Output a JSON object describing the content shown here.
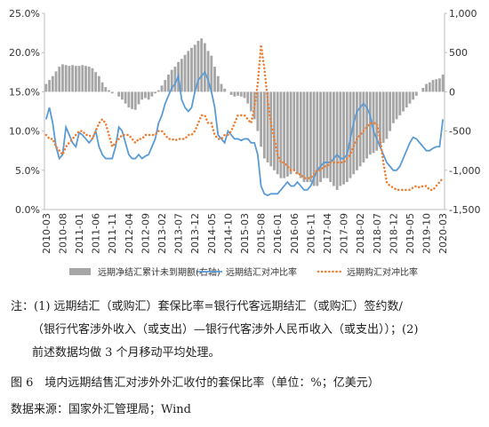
{
  "chart_data": {
    "type": "bar-line",
    "categories": [
      "2010-03",
      null,
      null,
      null,
      null,
      "2010-08",
      null,
      null,
      null,
      null,
      "2011-01",
      null,
      null,
      null,
      null,
      "2011-06",
      null,
      null,
      null,
      null,
      "2011-11",
      null,
      null,
      null,
      null,
      "2012-04",
      null,
      null,
      null,
      null,
      "2012-09",
      null,
      null,
      null,
      null,
      "2013-02",
      null,
      null,
      null,
      null,
      "2013-07",
      null,
      null,
      null,
      null,
      "2013-12",
      null,
      null,
      null,
      null,
      "2014-05",
      null,
      null,
      null,
      null,
      "2014-10",
      null,
      null,
      null,
      null,
      "2015-03",
      null,
      null,
      null,
      null,
      "2015-08",
      null,
      null,
      null,
      null,
      "2016-01",
      null,
      null,
      null,
      null,
      "2016-06",
      null,
      null,
      null,
      null,
      "2016-11",
      null,
      null,
      null,
      null,
      "2017-04",
      null,
      null,
      null,
      null,
      "2017-09",
      null,
      null,
      null,
      null,
      "2018-02",
      null,
      null,
      null,
      null,
      "2018-07",
      null,
      null,
      null,
      null,
      "2018-12",
      null,
      null,
      null,
      null,
      "2019-05",
      null,
      null,
      null,
      null,
      "2019-10",
      null,
      null,
      null,
      null,
      "2020-03"
    ],
    "series": [
      {
        "name": "远期净结汇累计未到期额(右轴)",
        "kind": "bar",
        "axis": "y2",
        "color": "#a6a6a6",
        "values": [
          100,
          150,
          200,
          260,
          320,
          350,
          340,
          330,
          340,
          330,
          330,
          340,
          330,
          320,
          300,
          250,
          200,
          120,
          60,
          20,
          -20,
          0,
          -60,
          -100,
          -150,
          -200,
          -220,
          -230,
          -160,
          -100,
          -80,
          -100,
          -60,
          -20,
          20,
          80,
          150,
          220,
          280,
          320,
          380,
          420,
          470,
          520,
          560,
          600,
          650,
          680,
          620,
          520,
          460,
          320,
          200,
          100,
          40,
          0,
          -40,
          -60,
          -50,
          -60,
          -80,
          -150,
          -250,
          -350,
          -500,
          -700,
          -850,
          -900,
          -950,
          -1000,
          -1050,
          -1100,
          -1100,
          -1080,
          -1050,
          -1000,
          -1050,
          -1100,
          -1150,
          -1150,
          -1150,
          -1200,
          -1200,
          -1150,
          -1100,
          -1100,
          -1150,
          -1200,
          -1250,
          -1200,
          -1180,
          -1150,
          -1100,
          -1050,
          -1000,
          -950,
          -900,
          -850,
          -800,
          -780,
          -750,
          -700,
          -650,
          -600,
          -500,
          -400,
          -350,
          -300,
          -250,
          -200,
          -150,
          -100,
          -50,
          0,
          50,
          100,
          120,
          150,
          160,
          170,
          220
        ]
      },
      {
        "name": "远期结汇对冲比率",
        "kind": "line",
        "axis": "y",
        "color": "#5b9bd5",
        "values": [
          11.5,
          13,
          11,
          8,
          6.5,
          7,
          10.5,
          9.5,
          8.5,
          8,
          9.8,
          9.5,
          9,
          8.5,
          9,
          10,
          8,
          7,
          6.5,
          6.5,
          6.5,
          8,
          10.5,
          10,
          8.5,
          7,
          6.5,
          6.5,
          7,
          6.5,
          6.8,
          7,
          8,
          9,
          11,
          12,
          13.5,
          14.5,
          15.5,
          16,
          17,
          14,
          13,
          12.5,
          13,
          15,
          16.5,
          17,
          17.5,
          16.5,
          15,
          13,
          9.5,
          9,
          8.5,
          10,
          9.5,
          9,
          9,
          8.8,
          9,
          9,
          8.5,
          8.5,
          7,
          3,
          2,
          1.8,
          2,
          2,
          2,
          2.5,
          3,
          3.5,
          3,
          3,
          3.5,
          3,
          2.5,
          2.5,
          3,
          4,
          5,
          5.5,
          6,
          6,
          6,
          6.5,
          7,
          6.5,
          6.5,
          7,
          9,
          11,
          12.5,
          13,
          13.5,
          13,
          12,
          10,
          9,
          8,
          7,
          6,
          5.5,
          5,
          5,
          5.5,
          6.5,
          7.5,
          8.5,
          9.2,
          9,
          8.5,
          8,
          7.5,
          7.5,
          7.8,
          8,
          8,
          11.5
        ]
      },
      {
        "name": "远期购汇对冲比率",
        "kind": "dotted",
        "axis": "y",
        "color": "#ed7d31",
        "values": [
          9.5,
          9,
          9,
          8,
          7.5,
          7,
          8,
          8.5,
          9,
          9.5,
          10,
          10,
          9.5,
          9.5,
          9,
          10,
          11,
          11.5,
          11,
          9.5,
          8,
          8.5,
          9,
          9.5,
          9.5,
          9.5,
          9,
          8.5,
          9,
          9,
          9.5,
          9.5,
          9.5,
          9.5,
          10,
          10,
          9.5,
          9,
          9,
          8.8,
          9,
          9,
          9,
          9.5,
          9.5,
          10,
          11,
          12,
          12,
          11,
          11,
          9.5,
          9,
          9,
          9.5,
          9.5,
          10,
          11,
          12,
          12,
          12,
          11.5,
          11,
          13,
          16,
          21,
          18,
          14,
          11,
          9,
          7,
          6,
          6,
          5.5,
          5,
          5,
          4.5,
          4.5,
          4,
          4,
          4,
          4.5,
          5,
          5,
          5.5,
          5.5,
          6,
          6,
          6,
          6,
          6,
          6.5,
          7,
          8,
          9,
          9.5,
          10,
          10.5,
          11,
          11,
          11,
          9,
          6,
          3.5,
          3,
          2.8,
          2.5,
          2.5,
          2.5,
          2.5,
          2.5,
          2.8,
          3,
          2.8,
          3,
          3,
          2.5,
          2.5,
          3,
          3.5,
          4
        ]
      }
    ],
    "ylim": [
      0,
      25
    ],
    "yticks": [
      {
        "value": 0,
        "label": "0.0%"
      },
      {
        "value": 5,
        "label": "5.0%"
      },
      {
        "value": 10,
        "label": "10.0%"
      },
      {
        "value": 15,
        "label": "15.0%"
      },
      {
        "value": 20,
        "label": "20.0%"
      },
      {
        "value": 25,
        "label": "25.0%"
      }
    ],
    "y2lim": [
      -1500,
      1000
    ],
    "y2ticks": [
      {
        "value": -1500,
        "label": "-1,500"
      },
      {
        "value": -1000,
        "label": "-1,000"
      },
      -500,
      0,
      500,
      {
        "value": 1000,
        "label": "1,000"
      }
    ],
    "legend": "bottom"
  },
  "notes": [
    "注：(1) 远期结汇（或购汇）套保比率=银行代客远期结汇（或购汇）签约数/",
    "（银行代客涉外收入（或支出）—银行代客涉外人民币收入（或支出））；(2)",
    "前述数据均做 3 个月移动平均处理。"
  ],
  "caption": "图 6　境内远期结售汇对涉外外汇收付的套保比率（单位：%；亿美元）",
  "source": "数据来源：国家外汇管理局；Wind"
}
